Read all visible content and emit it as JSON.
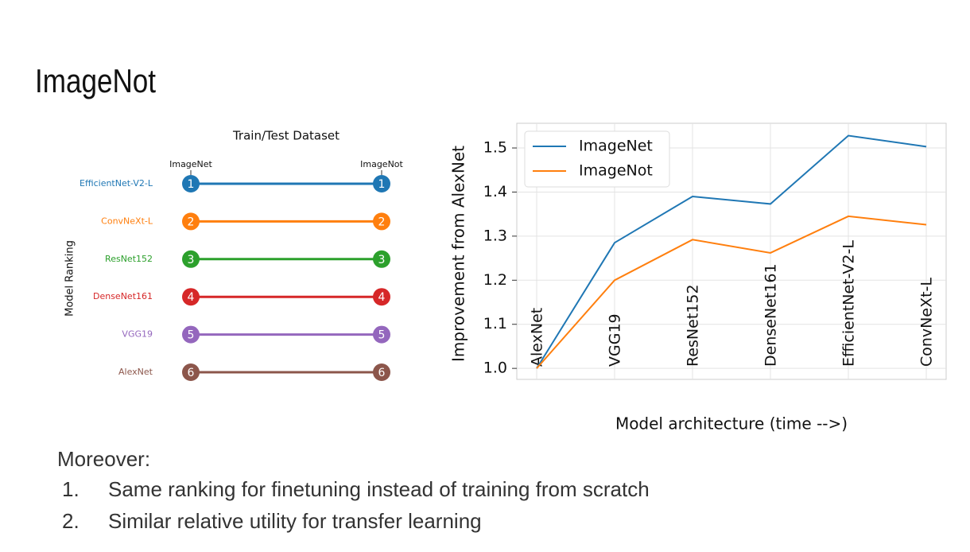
{
  "slide": {
    "title": "ImageNot",
    "intro": "Moreover:",
    "items": [
      {
        "marker": "1.",
        "text": "Same ranking for finetuning instead of training from scratch"
      },
      {
        "marker": "2.",
        "text": "Similar relative utility for transfer learning"
      }
    ]
  },
  "chart_data": [
    {
      "type": "slope",
      "title": "Train/Test Dataset",
      "ylabel": "Model Ranking",
      "columns": [
        "ImageNet",
        "ImageNot"
      ],
      "series": [
        {
          "name": "EfficientNet-V2-L",
          "color": "#1f77b4",
          "values": [
            1,
            1
          ]
        },
        {
          "name": "ConvNeXt-L",
          "color": "#ff7f0e",
          "values": [
            2,
            2
          ]
        },
        {
          "name": "ResNet152",
          "color": "#2ca02c",
          "values": [
            3,
            3
          ]
        },
        {
          "name": "DenseNet161",
          "color": "#d62728",
          "values": [
            4,
            4
          ]
        },
        {
          "name": "VGG19",
          "color": "#9467bd",
          "values": [
            5,
            5
          ]
        },
        {
          "name": "AlexNet",
          "color": "#8c564b",
          "values": [
            6,
            6
          ]
        }
      ]
    },
    {
      "type": "line",
      "xlabel": "Model architecture (time -->)",
      "ylabel": "Improvement from AlexNet",
      "categories": [
        "AlexNet",
        "VGG19",
        "ResNet152",
        "DenseNet161",
        "EfficientNet-V2-L",
        "ConvNeXt-L"
      ],
      "series": [
        {
          "name": "ImageNet",
          "color": "#1f77b4",
          "values": [
            1.0,
            1.285,
            1.39,
            1.373,
            1.528,
            1.503
          ]
        },
        {
          "name": "ImageNot",
          "color": "#ff7f0e",
          "values": [
            1.0,
            1.2,
            1.292,
            1.262,
            1.345,
            1.326
          ]
        }
      ],
      "ylim": [
        0.975,
        1.556
      ],
      "yticks": [
        {
          "value": 1,
          "label": "1.0"
        },
        1.1,
        1.2,
        1.3,
        1.4,
        1.5
      ],
      "grid": true,
      "legend": "upper-left"
    }
  ]
}
